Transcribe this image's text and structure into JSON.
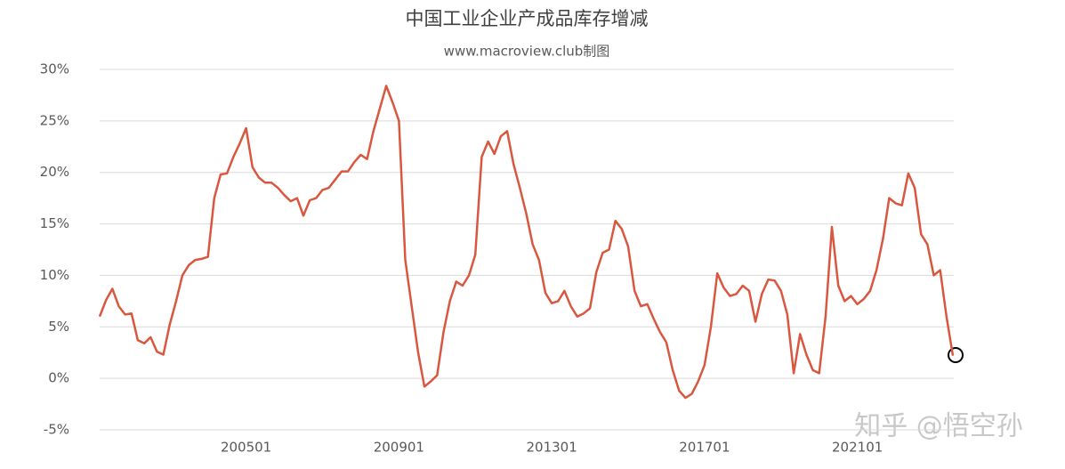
{
  "chart_data": {
    "type": "line",
    "title": "中国工业企业产成品库存增减",
    "subtitle": "www.macroview.club制图",
    "watermark": "知乎 @悟空孙",
    "categories": [
      null,
      null,
      null,
      null,
      null,
      null,
      null,
      null,
      null,
      null,
      null,
      null,
      null,
      null,
      null,
      null,
      null,
      null,
      null,
      null,
      null,
      null,
      null,
      "200501",
      null,
      null,
      null,
      null,
      null,
      null,
      null,
      null,
      null,
      null,
      null,
      null,
      null,
      null,
      null,
      null,
      null,
      null,
      null,
      null,
      null,
      null,
      null,
      "200901",
      null,
      null,
      null,
      null,
      null,
      null,
      null,
      null,
      null,
      null,
      null,
      null,
      null,
      null,
      null,
      null,
      null,
      null,
      null,
      null,
      null,
      null,
      null,
      "201301",
      null,
      null,
      null,
      null,
      null,
      null,
      null,
      null,
      null,
      null,
      null,
      null,
      null,
      null,
      null,
      null,
      null,
      null,
      null,
      null,
      null,
      null,
      null,
      "201701",
      null,
      null,
      null,
      null,
      null,
      null,
      null,
      null,
      null,
      null,
      null,
      null,
      null,
      null,
      null,
      null,
      null,
      null,
      null,
      null,
      null,
      null,
      null,
      "202101",
      null,
      null,
      null,
      null,
      null,
      null,
      null,
      null,
      null,
      null,
      null,
      null,
      null,
      null,
      null
    ],
    "series": [
      {
        "name": "产成品库存增减",
        "color": "#d9573f",
        "values": [
          6.0,
          7.6,
          8.7,
          7.0,
          6.2,
          6.3,
          3.7,
          3.4,
          4.0,
          2.6,
          2.3,
          5.2,
          7.5,
          10.0,
          11.0,
          11.5,
          11.6,
          11.8,
          17.5,
          19.8,
          19.9,
          21.5,
          22.8,
          24.3,
          20.5,
          19.5,
          19.0,
          19.0,
          18.5,
          17.8,
          17.2,
          17.5,
          15.8,
          17.3,
          17.5,
          18.3,
          18.5,
          19.3,
          20.1,
          20.1,
          21.0,
          21.7,
          21.3,
          24.0,
          26.2,
          28.4,
          26.8,
          25.0,
          11.5,
          7.0,
          2.6,
          -0.8,
          -0.3,
          0.3,
          4.5,
          7.5,
          9.4,
          9.0,
          10.0,
          12.0,
          21.5,
          23.0,
          21.8,
          23.5,
          24.0,
          20.8,
          18.5,
          16.0,
          13.0,
          11.5,
          8.3,
          7.3,
          7.5,
          8.5,
          7.0,
          6.0,
          6.3,
          6.8,
          10.3,
          12.2,
          12.5,
          15.3,
          14.5,
          12.8,
          8.5,
          7.0,
          7.2,
          5.8,
          4.5,
          3.5,
          0.8,
          -1.2,
          -1.9,
          -1.5,
          -0.3,
          1.3,
          5.0,
          10.2,
          8.8,
          8.0,
          8.2,
          9.0,
          8.5,
          5.5,
          8.2,
          9.6,
          9.5,
          8.5,
          6.2,
          0.5,
          4.3,
          2.3,
          0.8,
          0.5,
          6.0,
          14.7,
          9.0,
          7.5,
          8.0,
          7.2,
          7.7,
          8.5,
          10.5,
          13.5,
          17.5,
          17.0,
          16.8,
          19.9,
          18.5,
          14.0,
          13.0,
          10.0,
          10.5,
          6.0,
          2.2
        ]
      }
    ],
    "ylim": [
      -5,
      30
    ],
    "yticks": [
      {
        "value": -5,
        "label": "-5%"
      },
      {
        "value": 0,
        "label": "0%"
      },
      {
        "value": 5,
        "label": "5%"
      },
      {
        "value": 10,
        "label": "10%"
      },
      {
        "value": 15,
        "label": "15%"
      },
      {
        "value": 20,
        "label": "20%"
      },
      {
        "value": 25,
        "label": "25%"
      },
      {
        "value": 30,
        "label": "30%"
      }
    ],
    "grid": true
  }
}
